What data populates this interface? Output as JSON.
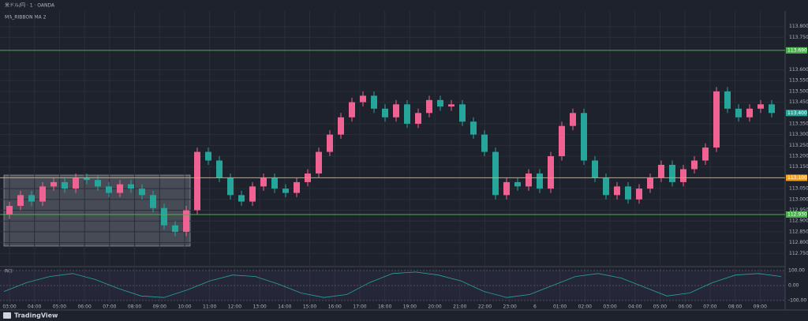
{
  "header": {
    "title": "米ドル/円 · 1 · OANDA",
    "indicator": "MA_RIBBON MA 2",
    "rci_label": "RCI",
    "footer": "TradingView"
  },
  "chart_data": {
    "type": "candlestick",
    "up_color": "#f06292",
    "down_color": "#26a69a",
    "open": [
      112.93,
      112.97,
      113.02,
      112.99,
      113.06,
      113.08,
      113.05,
      113.1,
      113.09,
      113.06,
      113.03,
      113.07,
      113.05,
      113.02,
      112.96,
      112.88,
      112.85,
      112.95,
      113.22,
      113.18,
      113.1,
      113.02,
      112.99,
      113.06,
      113.1,
      113.05,
      113.03,
      113.08,
      113.12,
      113.22,
      113.3,
      113.38,
      113.45,
      113.48,
      113.42,
      113.38,
      113.44,
      113.35,
      113.4,
      113.46,
      113.43,
      113.44,
      113.36,
      113.3,
      113.22,
      113.02,
      113.08,
      113.06,
      113.12,
      113.05,
      113.2,
      113.34,
      113.4,
      113.18,
      113.1,
      113.02,
      113.06,
      113.0,
      113.05,
      113.1,
      113.16,
      113.08,
      113.14,
      113.18,
      113.24,
      113.5,
      113.42,
      113.38,
      113.42,
      113.44
    ],
    "high": [
      112.99,
      113.04,
      113.04,
      113.08,
      113.1,
      113.1,
      113.12,
      113.12,
      113.11,
      113.08,
      113.09,
      113.09,
      113.07,
      113.04,
      112.98,
      112.9,
      112.97,
      113.24,
      113.24,
      113.2,
      113.12,
      113.04,
      113.08,
      113.12,
      113.12,
      113.07,
      113.1,
      113.14,
      113.24,
      113.32,
      113.4,
      113.47,
      113.5,
      113.5,
      113.44,
      113.46,
      113.46,
      113.42,
      113.48,
      113.48,
      113.46,
      113.46,
      113.38,
      113.32,
      113.24,
      113.1,
      113.1,
      113.14,
      113.14,
      113.22,
      113.36,
      113.42,
      113.42,
      113.2,
      113.12,
      113.08,
      113.08,
      113.07,
      113.12,
      113.18,
      113.18,
      113.16,
      113.2,
      113.26,
      113.52,
      113.52,
      113.44,
      113.44,
      113.46,
      113.46
    ],
    "low": [
      112.91,
      112.95,
      112.97,
      112.97,
      113.04,
      113.03,
      113.03,
      113.07,
      113.04,
      113.01,
      113.01,
      113.03,
      113.0,
      112.94,
      112.86,
      112.83,
      112.83,
      112.93,
      113.16,
      113.08,
      113.0,
      112.97,
      112.97,
      113.04,
      113.03,
      113.01,
      113.01,
      113.06,
      113.1,
      113.2,
      113.28,
      113.36,
      113.43,
      113.4,
      113.36,
      113.36,
      113.33,
      113.33,
      113.38,
      113.41,
      113.41,
      113.34,
      113.28,
      113.2,
      113.0,
      113.0,
      113.04,
      113.04,
      113.03,
      113.03,
      113.18,
      113.32,
      113.16,
      113.08,
      113.0,
      113.0,
      112.98,
      112.98,
      113.03,
      113.08,
      113.06,
      113.06,
      113.12,
      113.16,
      113.22,
      113.4,
      113.36,
      113.36,
      113.4,
      113.38
    ],
    "close": [
      112.97,
      113.02,
      112.99,
      113.06,
      113.08,
      113.05,
      113.1,
      113.09,
      113.06,
      113.03,
      113.07,
      113.05,
      113.02,
      112.96,
      112.88,
      112.85,
      112.95,
      113.22,
      113.18,
      113.1,
      113.02,
      112.99,
      113.06,
      113.1,
      113.05,
      113.03,
      113.08,
      113.12,
      113.22,
      113.3,
      113.38,
      113.45,
      113.48,
      113.42,
      113.38,
      113.44,
      113.35,
      113.4,
      113.46,
      113.43,
      113.44,
      113.36,
      113.3,
      113.22,
      113.02,
      113.08,
      113.06,
      113.12,
      113.05,
      113.2,
      113.34,
      113.4,
      113.18,
      113.1,
      113.02,
      113.06,
      113.0,
      113.05,
      113.1,
      113.16,
      113.08,
      113.14,
      113.18,
      113.24,
      113.5,
      113.42,
      113.38,
      113.42,
      113.44,
      113.4
    ],
    "ylim": [
      112.7,
      113.85
    ],
    "yticks": [
      {
        "value": 112.75,
        "label": "112.750"
      },
      {
        "value": 112.8,
        "label": "112.800"
      },
      {
        "value": 112.85,
        "label": "112.850"
      },
      {
        "value": 112.9,
        "label": "112.900"
      },
      {
        "value": 112.95,
        "label": "112.950"
      },
      {
        "value": 113.0,
        "label": "113.000"
      },
      {
        "value": 113.05,
        "label": "113.050"
      },
      {
        "value": 113.15,
        "label": "113.150"
      },
      {
        "value": 113.2,
        "label": "113.200"
      },
      {
        "value": 113.25,
        "label": "113.250"
      },
      {
        "value": 113.3,
        "label": "113.300"
      },
      {
        "value": 113.35,
        "label": "113.350"
      },
      {
        "value": 113.45,
        "label": "113.450"
      },
      {
        "value": 113.5,
        "label": "113.500"
      },
      {
        "value": 113.55,
        "label": "113.550"
      },
      {
        "value": 113.6,
        "label": "113.600"
      },
      {
        "value": 113.75,
        "label": "113.750"
      },
      {
        "value": 113.8,
        "label": "113.800"
      }
    ],
    "levels": [
      {
        "value": 113.69,
        "label": "113.690",
        "color": "#4caf50"
      },
      {
        "value": 113.1,
        "label": "113.100",
        "color": "#f7a21b"
      },
      {
        "value": 112.93,
        "label": "112.930",
        "color": "#4caf50"
      }
    ],
    "last": {
      "value": 113.4,
      "label": "113.400"
    },
    "xlabels": [
      "03:00",
      "04:00",
      "05:00",
      "06:00",
      "07:00",
      "08:00",
      "09:00",
      "10:00",
      "11:00",
      "12:00",
      "13:00",
      "14:00",
      "15:00",
      "16:00",
      "17:00",
      "18:00",
      "19:00",
      "20:00",
      "21:00",
      "22:00",
      "23:00",
      "6",
      "01:00",
      "02:00",
      "03:00",
      "04:00",
      "05:00",
      "06:00",
      "07:00",
      "08:00",
      "09:00"
    ],
    "rci": {
      "values": [
        -40,
        20,
        60,
        80,
        40,
        -20,
        -70,
        -80,
        -30,
        30,
        70,
        60,
        10,
        -50,
        -80,
        -60,
        20,
        80,
        90,
        70,
        30,
        -40,
        -80,
        -60,
        0,
        60,
        80,
        50,
        -10,
        -70,
        -50,
        20,
        70,
        80,
        60
      ],
      "color": "#26a69a",
      "ylim": [
        -100,
        100
      ],
      "yticks": [
        {
          "value": 100,
          "label": "100.00"
        },
        {
          "value": 0,
          "label": "0.00"
        },
        {
          "value": -100,
          "label": "-100.00"
        }
      ]
    }
  }
}
